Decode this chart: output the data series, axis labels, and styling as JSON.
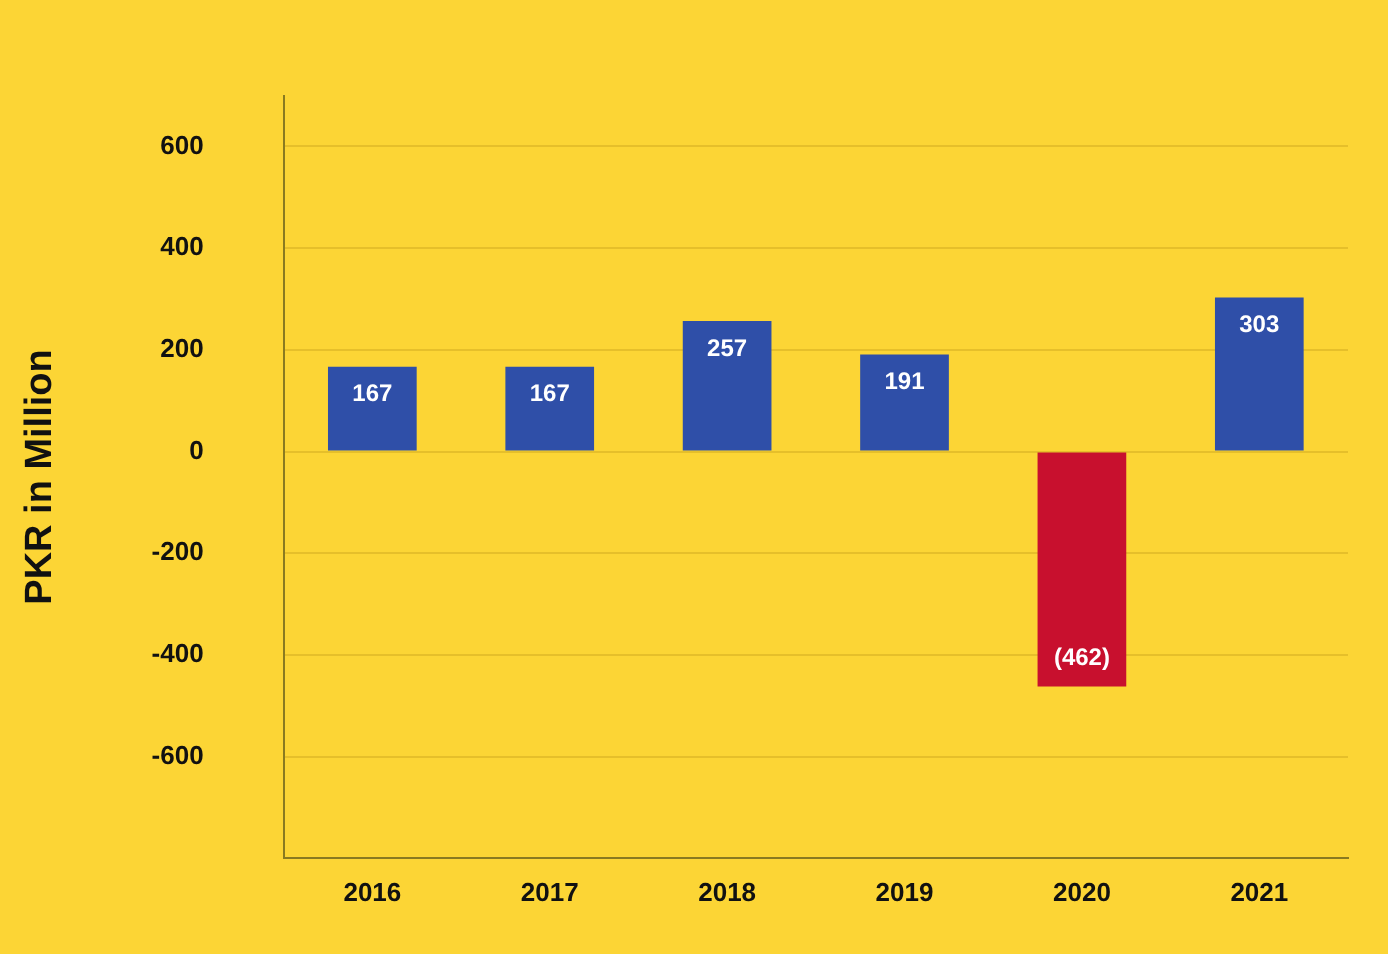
{
  "chart_data": {
    "type": "bar",
    "ylabel": "PKR in Million",
    "categories": [
      "2016",
      "2017",
      "2018",
      "2019",
      "2020",
      "2021"
    ],
    "values": [
      167,
      167,
      257,
      191,
      -462,
      303
    ],
    "colors": [
      "#2f4fa8",
      "#2f4fa8",
      "#2f4fa8",
      "#2f4fa8",
      "#c8102e",
      "#2f4fa8"
    ],
    "value_labels": [
      "167",
      "167",
      "257",
      "191",
      "(462)",
      "303"
    ],
    "ylim": [
      -800,
      700
    ],
    "yticks": [
      -600,
      -400,
      -200,
      0,
      200,
      400,
      600
    ],
    "grid": "y",
    "legend": false
  }
}
